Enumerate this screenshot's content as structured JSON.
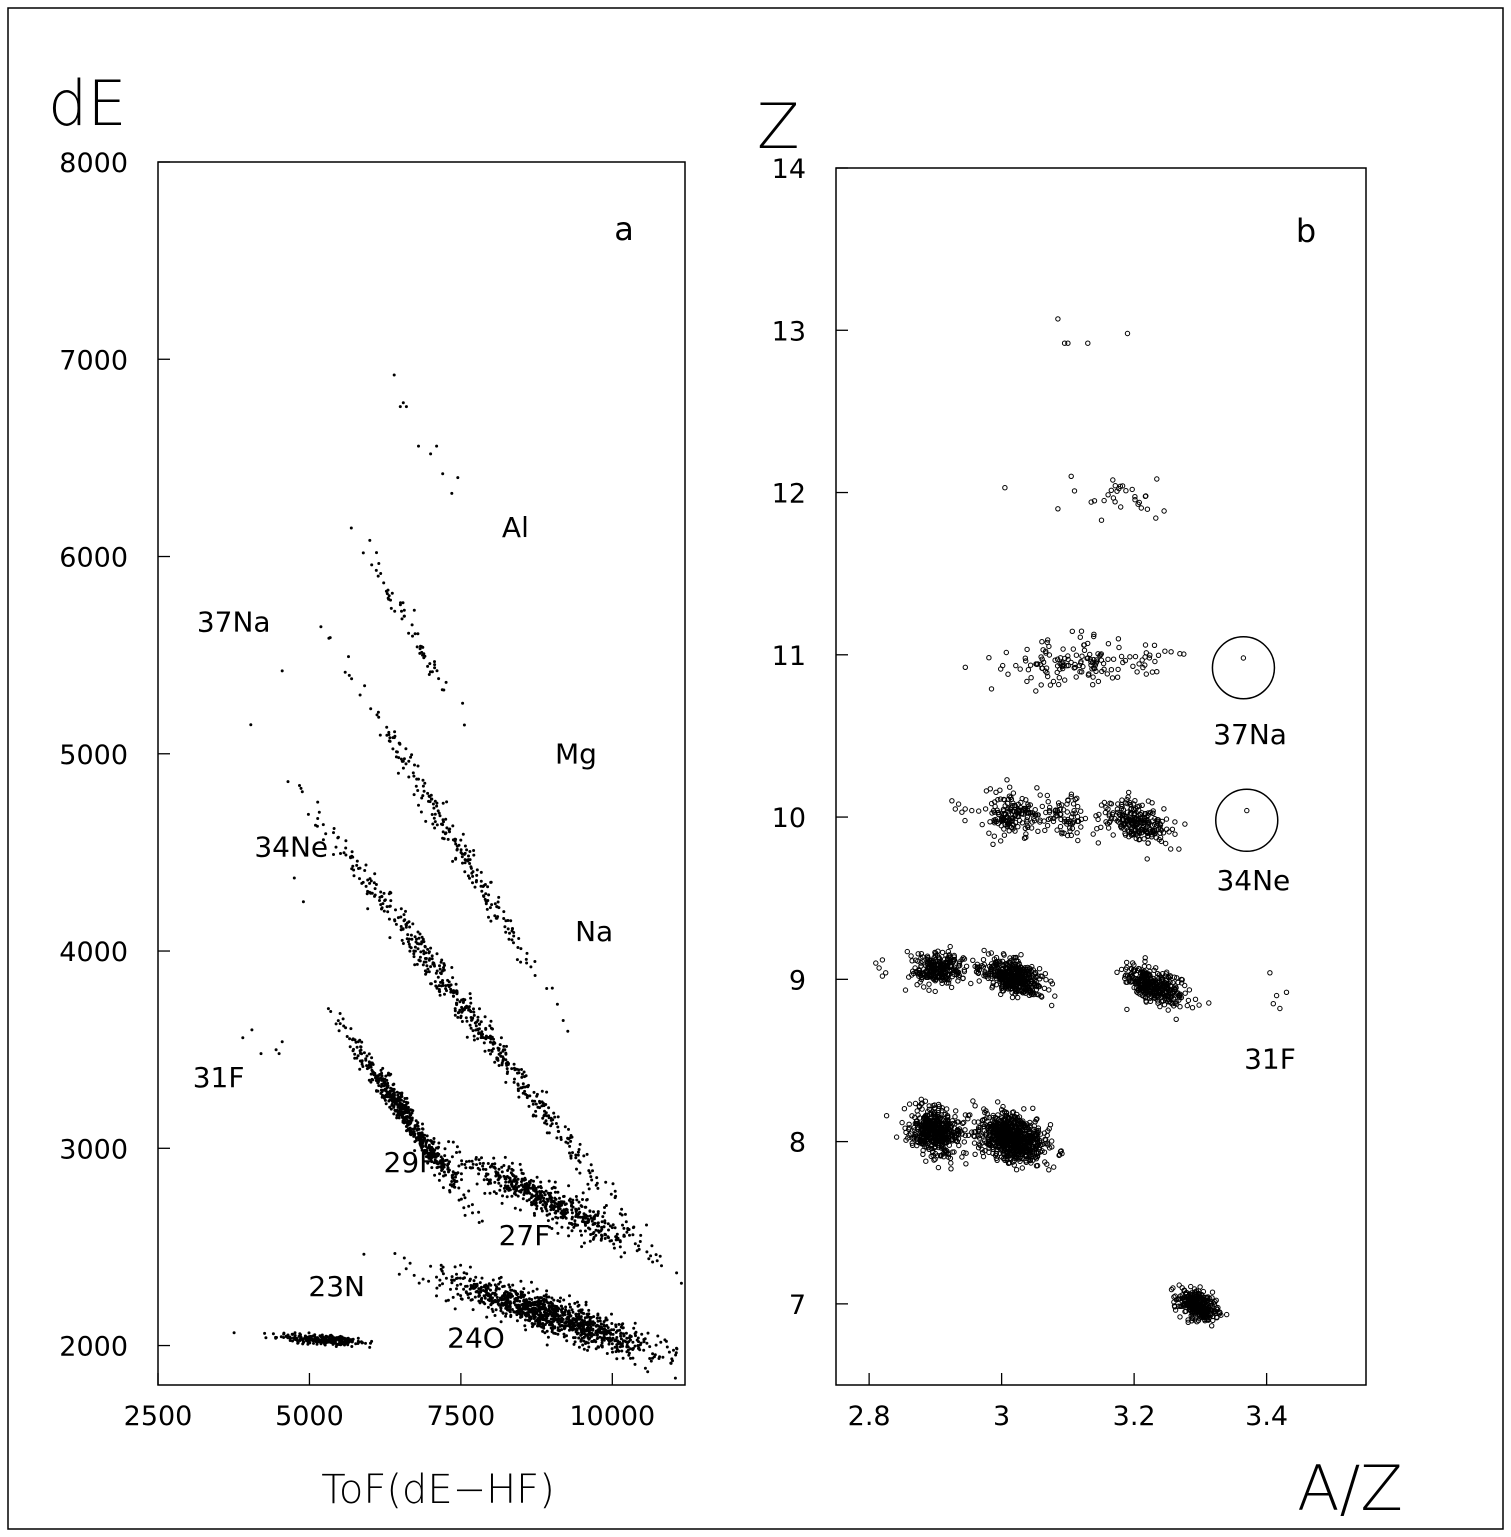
{
  "chart_data": [
    {
      "type": "scatter",
      "panel_label": "a",
      "ylabel": "dE",
      "xlabel": "ToF(dE−HF)",
      "xlim": [
        2500,
        11200
      ],
      "ylim": [
        1800,
        8000
      ],
      "x_ticks": [
        "2500",
        "5000",
        "7500",
        "10000"
      ],
      "y_ticks": [
        "2000",
        "3000",
        "4000",
        "5000",
        "6000",
        "7000",
        "8000"
      ],
      "grid": false,
      "annotations": [
        {
          "text": "Al",
          "x": 8400,
          "y": 6100
        },
        {
          "text": "37Na",
          "x": 3750,
          "y": 5620
        },
        {
          "text": "Mg",
          "x": 9400,
          "y": 4950
        },
        {
          "text": "34Ne",
          "x": 4700,
          "y": 4480
        },
        {
          "text": "Na",
          "x": 9700,
          "y": 4050
        },
        {
          "text": "31F",
          "x": 3500,
          "y": 3310
        },
        {
          "text": "29F",
          "x": 6650,
          "y": 2880
        },
        {
          "text": "27F",
          "x": 8550,
          "y": 2510
        },
        {
          "text": "23N",
          "x": 5450,
          "y": 2250
        },
        {
          "text": "24O",
          "x": 7750,
          "y": 1990
        }
      ],
      "clusters": [
        {
          "name": "Al",
          "x": [
            6400,
            6500,
            6550,
            6600,
            6800,
            7000,
            7100,
            7200,
            7350,
            7450
          ],
          "y": [
            6920,
            6760,
            6780,
            6760,
            6560,
            6520,
            6560,
            6420,
            6320,
            6400
          ]
        },
        {
          "name": "37Na",
          "x": [
            4550
          ],
          "y": [
            5420
          ]
        },
        {
          "name": "34Ne",
          "x": [
            4750,
            4900
          ],
          "y": [
            4370,
            4250
          ]
        },
        {
          "name": "31F",
          "x": [
            3900,
            4050,
            4200,
            4450,
            4500,
            4550
          ],
          "y": [
            3560,
            3600,
            3480,
            3500,
            3480,
            3540
          ]
        },
        {
          "name": "Mg",
          "mean": [
            6650,
            5650
          ],
          "slope": -0.55,
          "spread": [
            380,
            45
          ],
          "n": 60,
          "seed": 11
        },
        {
          "name": "Na",
          "mean": [
            7300,
            4600
          ],
          "slope": -0.5,
          "spread": [
            780,
            45
          ],
          "n": 220,
          "seed": 23
        },
        {
          "name": "F-band",
          "mean": [
            7600,
            3700
          ],
          "slope": -0.4,
          "spread": [
            1150,
            48
          ],
          "n": 520,
          "seed": 37
        },
        {
          "name": "29F",
          "mean": [
            6600,
            3160
          ],
          "slope": -0.42,
          "spread": [
            480,
            40
          ],
          "n": 540,
          "seed": 41
        },
        {
          "name": "27F",
          "mean": [
            9000,
            2720
          ],
          "slope": -0.15,
          "spread": [
            850,
            48
          ],
          "n": 560,
          "seed": 53
        },
        {
          "name": "23N",
          "mean": [
            5200,
            2030
          ],
          "slope": -0.02,
          "spread": [
            360,
            12
          ],
          "n": 260,
          "seed": 61
        },
        {
          "name": "24O",
          "mean": [
            9000,
            2150
          ],
          "slope": -0.1,
          "spread": [
            850,
            45
          ],
          "n": 1100,
          "seed": 73
        }
      ]
    },
    {
      "type": "scatter",
      "panel_label": "b",
      "ylabel": "Z",
      "xlabel": "A/Z",
      "xlim": [
        2.75,
        3.55
      ],
      "ylim": [
        6.5,
        14
      ],
      "x_ticks": [
        "2.8",
        "3",
        "3.2",
        "3.4"
      ],
      "y_ticks": [
        "7",
        "8",
        "9",
        "10",
        "11",
        "12",
        "13",
        "14"
      ],
      "grid": false,
      "annotations": [
        {
          "text": "37Na",
          "x": 3.375,
          "y": 10.45
        },
        {
          "text": "34Ne",
          "x": 3.38,
          "y": 9.55
        },
        {
          "text": "31F",
          "x": 3.405,
          "y": 8.45
        }
      ],
      "highlight_circles": [
        {
          "name": "37Na",
          "x": 3.365,
          "y": 10.92
        },
        {
          "name": "34Ne",
          "x": 3.37,
          "y": 9.98
        }
      ],
      "clusters": [
        {
          "name": "Z13",
          "x": [
            3.085,
            3.095,
            3.1,
            3.13,
            3.19
          ],
          "y": [
            13.07,
            12.92,
            12.92,
            12.92,
            12.98
          ]
        },
        {
          "name": "Z12-single",
          "x": [
            3.005,
            3.085,
            3.105,
            3.11
          ],
          "y": [
            12.03,
            11.9,
            12.1,
            12.01
          ]
        },
        {
          "name": "Z12",
          "mean": [
            3.185,
            11.96
          ],
          "slope": 0,
          "spread": [
            0.03,
            0.06
          ],
          "n": 28,
          "seed": 101
        },
        {
          "name": "Z11",
          "mean": [
            3.12,
            10.96
          ],
          "slope": 0,
          "spread": [
            0.065,
            0.07
          ],
          "n": 150,
          "seed": 103
        },
        {
          "name": "Z11-37Na",
          "x": [
            3.365
          ],
          "y": [
            10.98
          ]
        },
        {
          "name": "Z10-left",
          "x": [
            2.925,
            2.93,
            2.935,
            2.94,
            2.945,
            2.955
          ],
          "y": [
            10.1,
            10.05,
            10.08,
            10.03,
            10.05,
            10.04
          ]
        },
        {
          "name": "Z10-a",
          "mean": [
            3.015,
            10.02
          ],
          "slope": 0,
          "spread": [
            0.025,
            0.07
          ],
          "n": 170,
          "seed": 107
        },
        {
          "name": "Z10-b",
          "mean": [
            3.1,
            10.0
          ],
          "slope": 0,
          "spread": [
            0.02,
            0.07
          ],
          "n": 70,
          "seed": 109
        },
        {
          "name": "Z10-c",
          "mean": [
            3.205,
            9.97
          ],
          "slope": -1.2,
          "spread": [
            0.025,
            0.06
          ],
          "n": 230,
          "seed": 113
        },
        {
          "name": "Z10-34Ne",
          "x": [
            3.37
          ],
          "y": [
            10.04
          ]
        },
        {
          "name": "Z9-left",
          "x": [
            2.81,
            2.815,
            2.82,
            2.82,
            2.825
          ],
          "y": [
            9.1,
            9.07,
            9.02,
            9.12,
            9.04
          ]
        },
        {
          "name": "Z9-a",
          "mean": [
            2.905,
            9.06
          ],
          "slope": 0,
          "spread": [
            0.02,
            0.05
          ],
          "n": 260,
          "seed": 127
        },
        {
          "name": "Z9-b",
          "mean": [
            3.015,
            9.02
          ],
          "slope": -1.0,
          "spread": [
            0.022,
            0.05
          ],
          "n": 430,
          "seed": 131
        },
        {
          "name": "Z9-c",
          "mean": [
            3.23,
            8.96
          ],
          "slope": -1.2,
          "spread": [
            0.022,
            0.05
          ],
          "n": 360,
          "seed": 137
        },
        {
          "name": "Z9-31F",
          "x": [
            3.405,
            3.41,
            3.415,
            3.42,
            3.43
          ],
          "y": [
            9.04,
            8.85,
            8.9,
            8.82,
            8.92
          ]
        },
        {
          "name": "Z8-a",
          "mean": [
            2.9,
            8.06
          ],
          "slope": -0.6,
          "spread": [
            0.018,
            0.07
          ],
          "n": 500,
          "seed": 139
        },
        {
          "name": "Z8-b",
          "mean": [
            3.015,
            8.02
          ],
          "slope": -1.0,
          "spread": [
            0.025,
            0.07
          ],
          "n": 800,
          "seed": 149
        },
        {
          "name": "Z7",
          "mean": [
            3.295,
            6.99
          ],
          "slope": -1.2,
          "spread": [
            0.014,
            0.04
          ],
          "n": 320,
          "seed": 151
        }
      ]
    }
  ]
}
